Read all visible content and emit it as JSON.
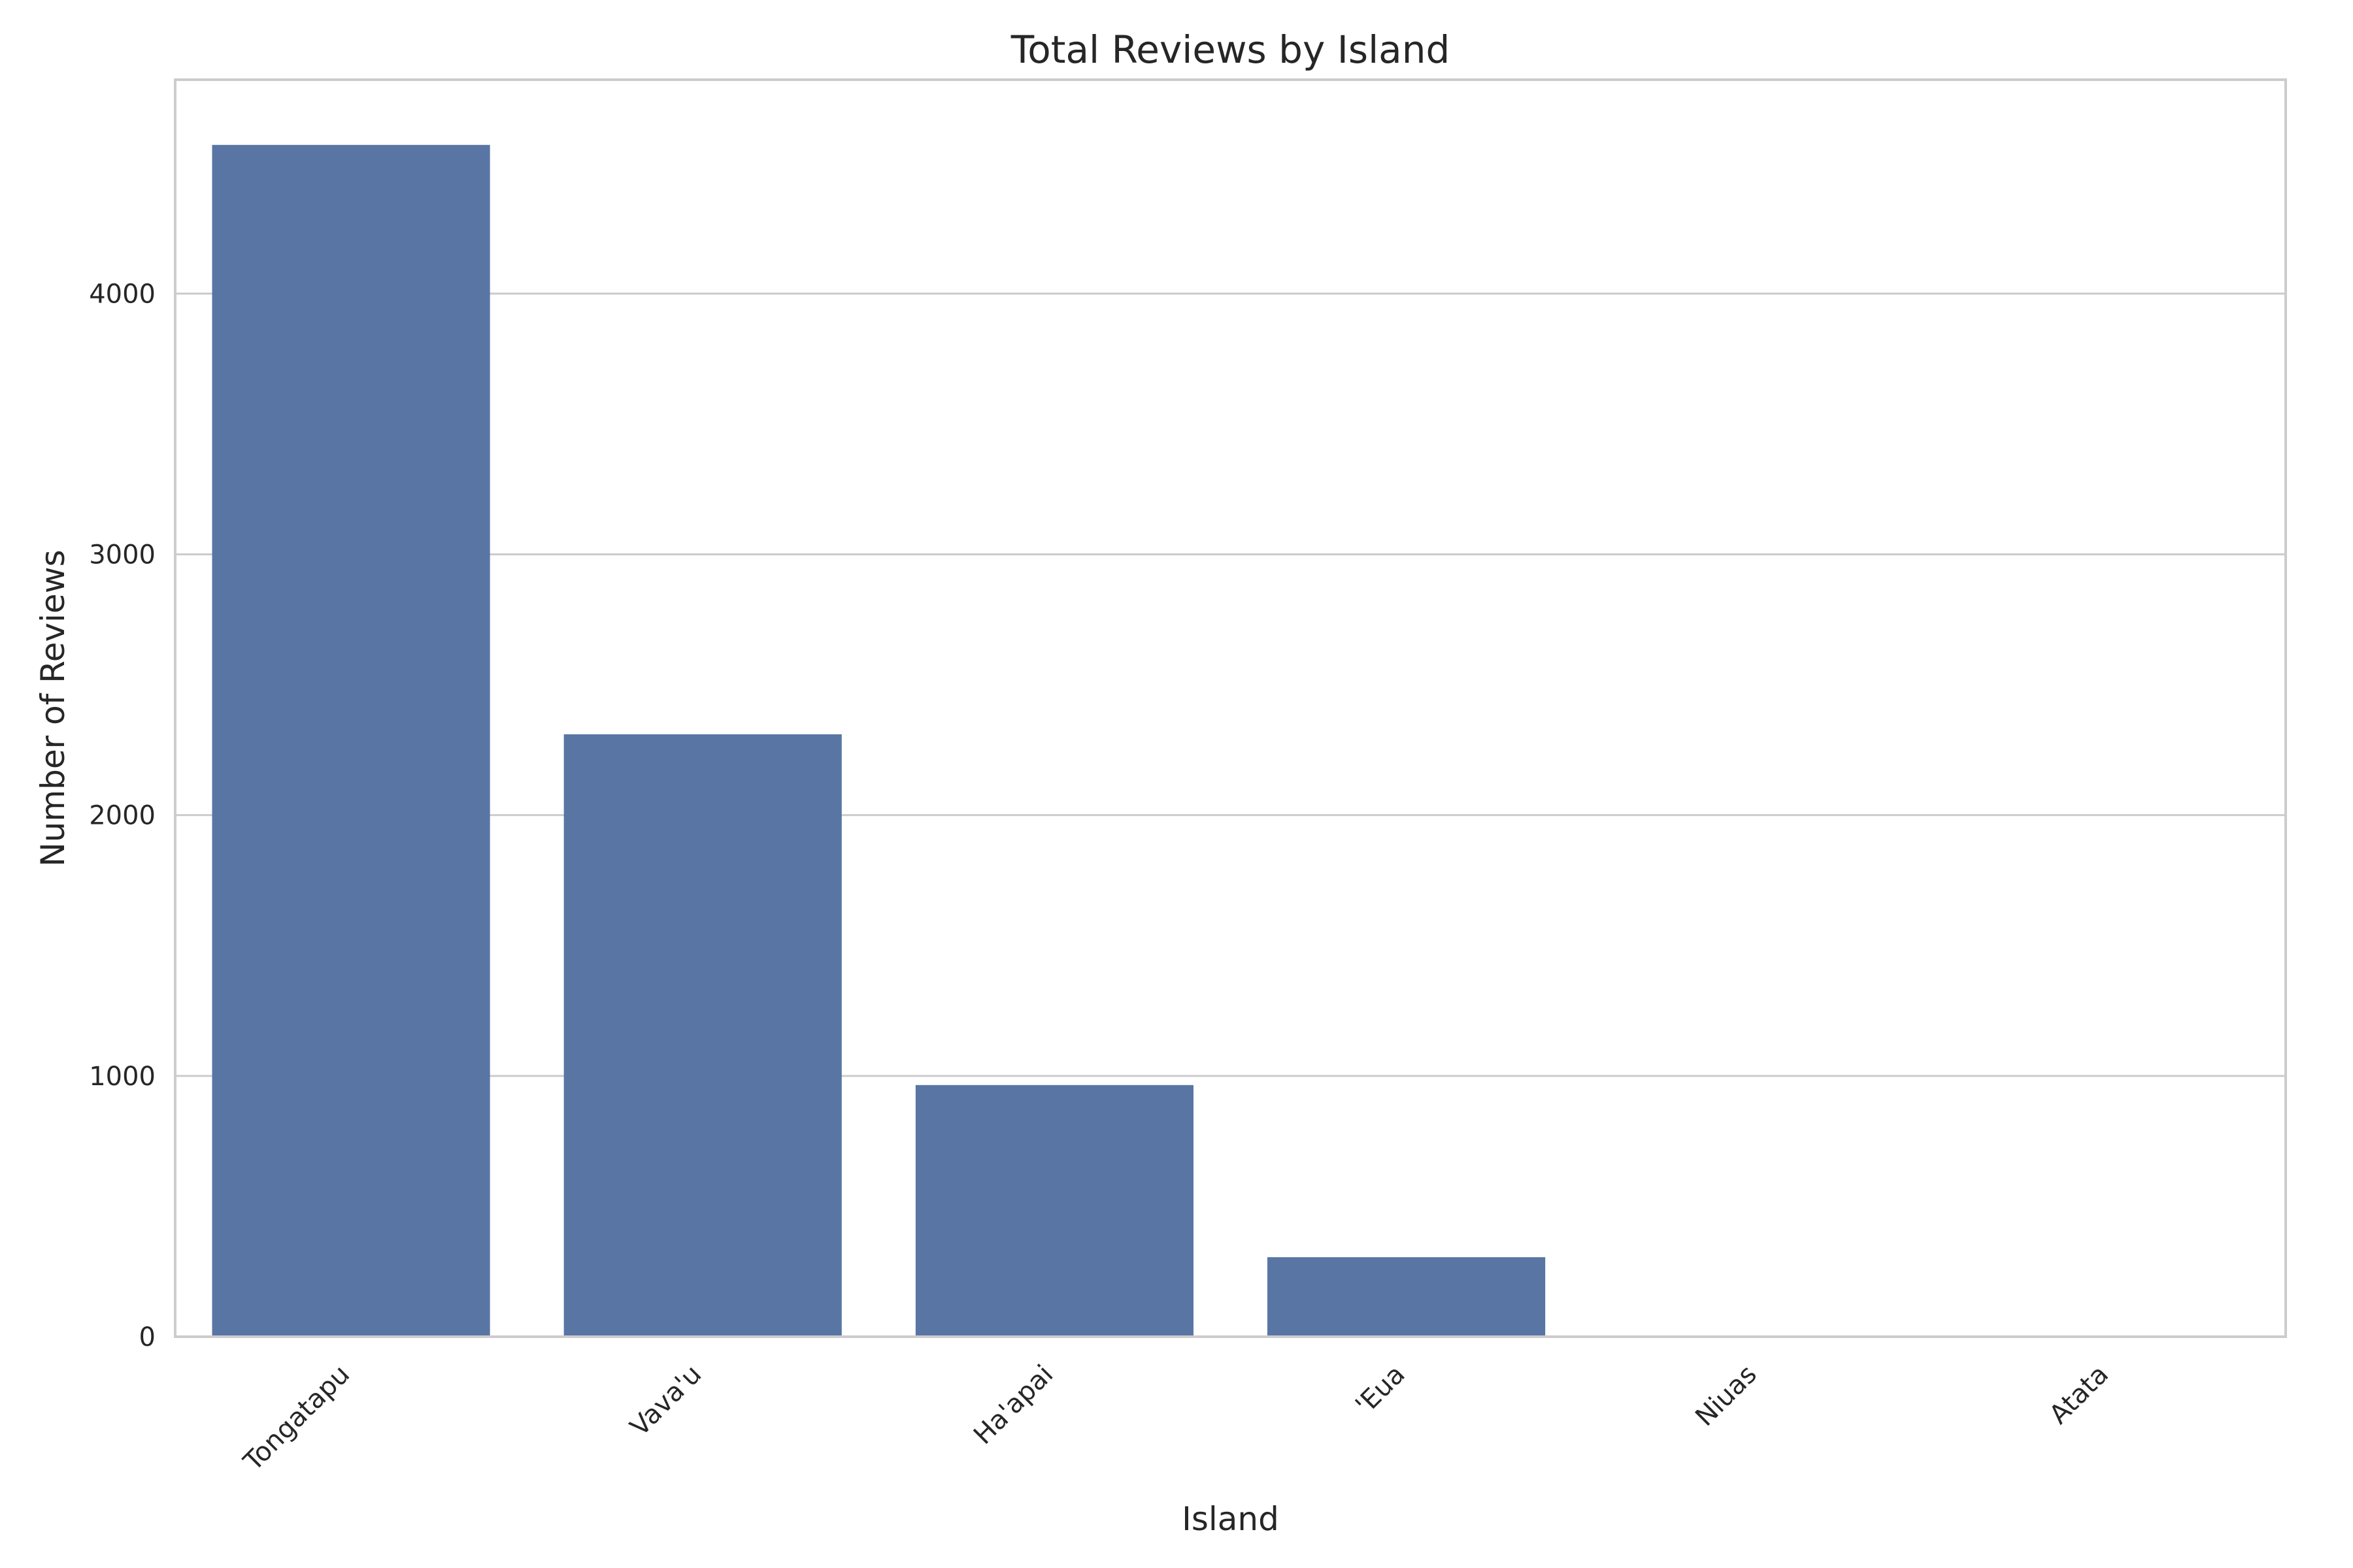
{
  "chart_data": {
    "type": "bar",
    "title": "Total Reviews by Island",
    "xlabel": "Island",
    "ylabel": "Number of Reviews",
    "categories": [
      "Tongatapu",
      "Vava'u",
      "Ha'apai",
      "'Eua",
      "Niuas",
      "Atata"
    ],
    "values": [
      4570,
      2310,
      965,
      305,
      0,
      0
    ],
    "ylim": [
      0,
      4820
    ],
    "yticks": [
      0,
      1000,
      2000,
      3000,
      4000
    ],
    "grid": "horizontal",
    "bar_color": "#5975a4"
  }
}
